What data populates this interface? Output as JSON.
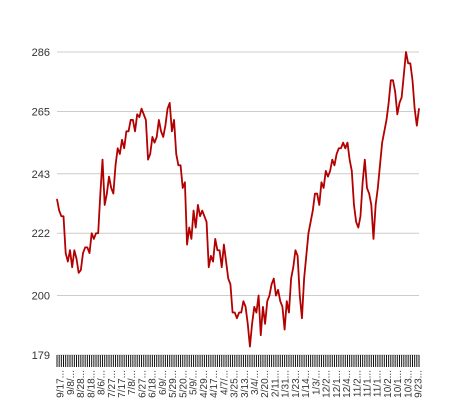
{
  "chart_data": {
    "type": "line",
    "title": "",
    "xlabel": "",
    "ylabel": "",
    "ylim": [
      179,
      286
    ],
    "yticks": [
      179,
      200,
      222,
      243,
      265,
      286
    ],
    "grid": "horizontal",
    "legend": "none",
    "colors": {
      "line": "#b30000",
      "grid": "#cccccc",
      "axis_text": "#333333",
      "ticks": "#111111"
    },
    "x_tick_labels": [
      "9/17...",
      "9/8/...",
      "8/28...",
      "8/18...",
      "8/6/...",
      "7/27...",
      "7/17...",
      "7/8/...",
      "6/27...",
      "6/18...",
      "6/9/...",
      "5/29...",
      "5/20...",
      "5/9/...",
      "4/29...",
      "4/17...",
      "4/7/...",
      "3/25...",
      "3/13...",
      "3/4/...",
      "2/20...",
      "2/11...",
      "1/31...",
      "1/23...",
      "1/14...",
      "1/3/...",
      "12/2...",
      "12/1...",
      "12/4...",
      "11/2...",
      "11/1...",
      "11/1...",
      "10/2...",
      "10/1...",
      "10/3...",
      "9/23..."
    ],
    "series": [
      {
        "values": [
          234,
          230,
          228,
          228,
          215,
          212,
          216,
          210,
          216,
          213,
          208,
          209,
          215,
          217,
          217,
          215,
          222,
          220,
          222,
          222,
          236,
          248,
          232,
          236,
          242,
          238,
          236,
          246,
          252,
          250,
          255,
          252,
          258,
          258,
          262,
          262,
          258,
          264,
          263,
          266,
          264,
          262,
          248,
          250,
          256,
          254,
          256,
          262,
          258,
          256,
          260,
          266,
          268,
          258,
          262,
          250,
          246,
          246,
          238,
          240,
          218,
          224,
          220,
          230,
          224,
          232,
          228,
          230,
          228,
          226,
          210,
          214,
          212,
          220,
          216,
          216,
          210,
          218,
          212,
          206,
          204,
          194,
          194,
          192,
          194,
          194,
          198,
          196,
          190,
          182,
          190,
          196,
          194,
          200,
          186,
          196,
          190,
          198,
          200,
          204,
          206,
          200,
          202,
          198,
          196,
          188,
          198,
          194,
          206,
          210,
          216,
          214,
          200,
          192,
          206,
          214,
          222,
          226,
          230,
          236,
          236,
          232,
          240,
          238,
          244,
          242,
          244,
          248,
          246,
          250,
          252,
          252,
          254,
          252,
          254,
          248,
          244,
          232,
          226,
          224,
          228,
          240,
          248,
          238,
          236,
          232,
          220,
          232,
          238,
          246,
          254,
          258,
          262,
          268,
          276,
          276,
          272,
          264,
          268,
          270,
          278,
          286,
          282,
          282,
          276,
          266,
          260,
          266
        ]
      }
    ]
  }
}
